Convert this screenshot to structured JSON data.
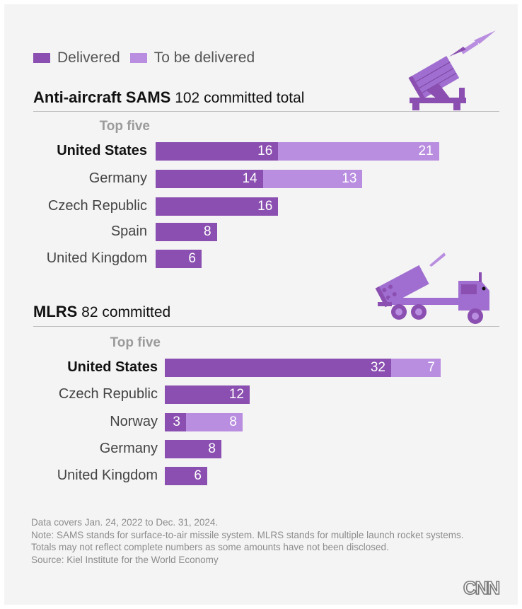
{
  "legend": {
    "delivered_label": "Delivered",
    "tbd_label": "To be delivered"
  },
  "colors": {
    "delivered": "#8a4fb0",
    "to_be_delivered": "#b98ee0",
    "background": "#f4f4f4"
  },
  "icons": {
    "sams": "missile-launcher-icon",
    "mlrs": "rocket-truck-icon",
    "logo": "cnn-logo"
  },
  "chart_data": [
    {
      "type": "bar",
      "title": "Anti-aircraft SAMS",
      "subtitle": "102 committed total",
      "group_label": "Top five",
      "stacked": true,
      "orientation": "horizontal",
      "categories": [
        "United States",
        "Germany",
        "Czech Republic",
        "Spain",
        "United Kingdom"
      ],
      "series": [
        {
          "name": "Delivered",
          "values": [
            16,
            14,
            16,
            8,
            6
          ]
        },
        {
          "name": "To be delivered",
          "values": [
            21,
            13,
            0,
            0,
            0
          ]
        }
      ]
    },
    {
      "type": "bar",
      "title": "MLRS",
      "subtitle": "82 committed",
      "group_label": "Top five",
      "stacked": true,
      "orientation": "horizontal",
      "categories": [
        "United States",
        "Czech Republic",
        "Norway",
        "Germany",
        "United Kingdom"
      ],
      "series": [
        {
          "name": "Delivered",
          "values": [
            32,
            12,
            3,
            8,
            6
          ]
        },
        {
          "name": "To be delivered",
          "values": [
            7,
            0,
            8,
            0,
            0
          ]
        }
      ]
    }
  ],
  "notes": [
    "Data covers Jan. 24, 2022 to Dec. 31, 2024.",
    "Note: SAMS stands for surface-to-air missile system. MLRS stands for multiple launch rocket systems.",
    "Totals may not reflect complete numbers as some amounts have not been disclosed.",
    "Source: Kiel Institute for the World Economy"
  ],
  "logo_text": "CNN"
}
